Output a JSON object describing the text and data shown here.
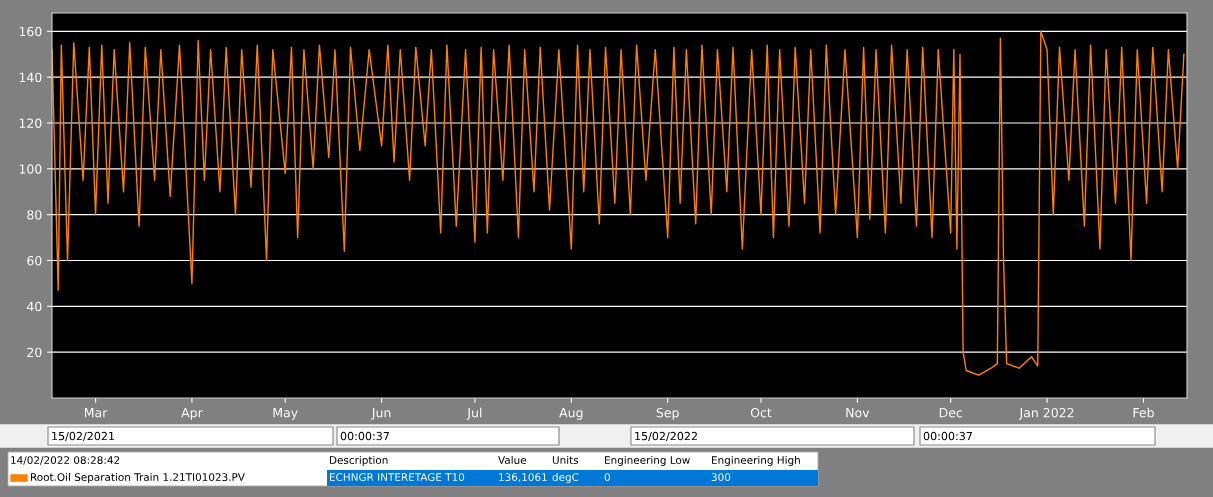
{
  "chart_data": {
    "type": "line",
    "xlim": [
      "2021-02-15T00:00",
      "2022-02-15T00:00"
    ],
    "xticks": [
      {
        "value": "2021-03-01",
        "label": "Mar"
      },
      {
        "value": "2021-04-01",
        "label": "Apr"
      },
      {
        "value": "2021-05-01",
        "label": "May"
      },
      {
        "value": "2021-06-01",
        "label": "Jun"
      },
      {
        "value": "2021-07-01",
        "label": "Jul"
      },
      {
        "value": "2021-08-01",
        "label": "Aug"
      },
      {
        "value": "2021-09-01",
        "label": "Sep"
      },
      {
        "value": "2021-10-01",
        "label": "Oct"
      },
      {
        "value": "2021-11-01",
        "label": "Nov"
      },
      {
        "value": "2021-12-01",
        "label": "Dec"
      },
      {
        "value": "2022-01-01",
        "label": "Jan 2022"
      },
      {
        "value": "2022-02-01",
        "label": "Feb"
      }
    ],
    "ylim": [
      0,
      168
    ],
    "yticks": [
      20,
      40,
      60,
      80,
      100,
      120,
      140,
      160
    ],
    "grid": "y",
    "legend": "bottom",
    "series": [
      {
        "name": "Root.Oil Separation Train 1.21TI01023.PV",
        "color": "#ff8000",
        "x": [
          "2021-02-15",
          "2021-02-17",
          "2021-02-18",
          "2021-02-20",
          "2021-02-22",
          "2021-02-25",
          "2021-02-27",
          "2021-03-01",
          "2021-03-03",
          "2021-03-05",
          "2021-03-07",
          "2021-03-10",
          "2021-03-12",
          "2021-03-15",
          "2021-03-17",
          "2021-03-20",
          "2021-03-22",
          "2021-03-25",
          "2021-03-28",
          "2021-04-01",
          "2021-04-03",
          "2021-04-05",
          "2021-04-07",
          "2021-04-10",
          "2021-04-12",
          "2021-04-15",
          "2021-04-17",
          "2021-04-20",
          "2021-04-22",
          "2021-04-25",
          "2021-04-27",
          "2021-05-01",
          "2021-05-03",
          "2021-05-05",
          "2021-05-07",
          "2021-05-10",
          "2021-05-12",
          "2021-05-15",
          "2021-05-17",
          "2021-05-20",
          "2021-05-22",
          "2021-05-25",
          "2021-05-28",
          "2021-06-01",
          "2021-06-03",
          "2021-06-05",
          "2021-06-07",
          "2021-06-10",
          "2021-06-12",
          "2021-06-15",
          "2021-06-17",
          "2021-06-20",
          "2021-06-22",
          "2021-06-25",
          "2021-06-28",
          "2021-07-01",
          "2021-07-03",
          "2021-07-05",
          "2021-07-07",
          "2021-07-10",
          "2021-07-12",
          "2021-07-15",
          "2021-07-17",
          "2021-07-20",
          "2021-07-22",
          "2021-07-25",
          "2021-07-28",
          "2021-08-01",
          "2021-08-03",
          "2021-08-05",
          "2021-08-07",
          "2021-08-10",
          "2021-08-12",
          "2021-08-15",
          "2021-08-17",
          "2021-08-20",
          "2021-08-22",
          "2021-08-25",
          "2021-08-28",
          "2021-09-01",
          "2021-09-03",
          "2021-09-05",
          "2021-09-07",
          "2021-09-10",
          "2021-09-12",
          "2021-09-15",
          "2021-09-17",
          "2021-09-20",
          "2021-09-22",
          "2021-09-25",
          "2021-09-28",
          "2021-10-01",
          "2021-10-03",
          "2021-10-05",
          "2021-10-07",
          "2021-10-10",
          "2021-10-12",
          "2021-10-15",
          "2021-10-17",
          "2021-10-20",
          "2021-10-22",
          "2021-10-25",
          "2021-10-28",
          "2021-11-01",
          "2021-11-03",
          "2021-11-05",
          "2021-11-07",
          "2021-11-10",
          "2021-11-12",
          "2021-11-15",
          "2021-11-17",
          "2021-11-20",
          "2021-11-22",
          "2021-11-25",
          "2021-11-27",
          "2021-12-01",
          "2021-12-02",
          "2021-12-03",
          "2021-12-04",
          "2021-12-05",
          "2021-12-06",
          "2021-12-10",
          "2021-12-14",
          "2021-12-16",
          "2021-12-17",
          "2021-12-18",
          "2021-12-19",
          "2021-12-23",
          "2021-12-27",
          "2021-12-29",
          "2021-12-30",
          "2022-01-01",
          "2022-01-03",
          "2022-01-05",
          "2022-01-08",
          "2022-01-10",
          "2022-01-13",
          "2022-01-15",
          "2022-01-18",
          "2022-01-20",
          "2022-01-23",
          "2022-01-25",
          "2022-01-28",
          "2022-01-30",
          "2022-02-02",
          "2022-02-04",
          "2022-02-07",
          "2022-02-09",
          "2022-02-12",
          "2022-02-14"
        ],
        "values": [
          152,
          47,
          154,
          60,
          155,
          95,
          153,
          80,
          154,
          85,
          152,
          90,
          155,
          75,
          153,
          95,
          152,
          88,
          154,
          50,
          156,
          95,
          152,
          90,
          153,
          80,
          152,
          92,
          154,
          60,
          152,
          98,
          153,
          70,
          152,
          100,
          154,
          105,
          152,
          64,
          153,
          108,
          152,
          110,
          154,
          103,
          152,
          95,
          153,
          110,
          152,
          72,
          154,
          75,
          152,
          68,
          153,
          72,
          152,
          95,
          154,
          70,
          152,
          90,
          153,
          82,
          152,
          65,
          154,
          90,
          152,
          76,
          153,
          85,
          152,
          80,
          154,
          95,
          152,
          70,
          153,
          85,
          152,
          76,
          154,
          80,
          152,
          90,
          153,
          65,
          152,
          80,
          154,
          70,
          152,
          75,
          153,
          85,
          152,
          72,
          154,
          80,
          152,
          70,
          153,
          78,
          152,
          72,
          154,
          85,
          152,
          75,
          153,
          70,
          152,
          72,
          152,
          65,
          150,
          20,
          12,
          10,
          13,
          15,
          157,
          60,
          15,
          13,
          18,
          14,
          160,
          152,
          80,
          153,
          95,
          152,
          75,
          154,
          65,
          152,
          85,
          153,
          60,
          152,
          85,
          153,
          90,
          152,
          100,
          150
        ]
      }
    ],
    "annotations": [
      "15/02/2021",
      "00:00:37",
      "15/02/2022",
      "00:00:37",
      "14/02/2022 08:28:42",
      "Description",
      "Value",
      "Units",
      "Engineering Low",
      "Engineering High",
      "ECHNGR INTERETAGE T10",
      "136,1061",
      "degC",
      "0",
      "300"
    ]
  }
}
